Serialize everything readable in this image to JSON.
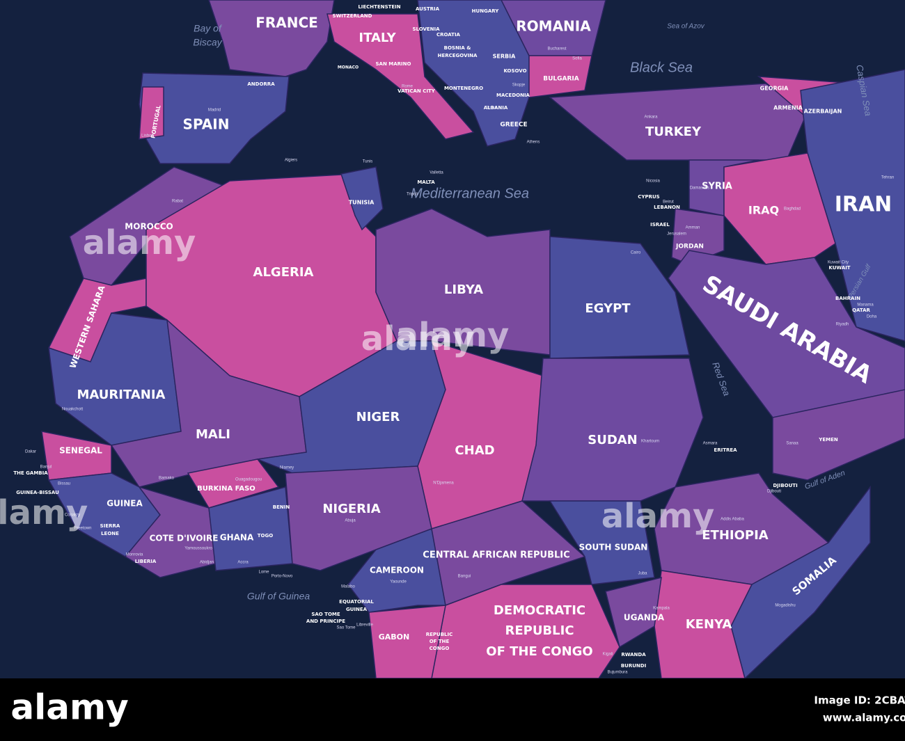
{
  "map": {
    "seas": [
      "Bay of",
      "Biscay",
      "Black Sea",
      "Mediterranean Sea",
      "Red Sea",
      "Gulf of Guinea",
      "Gulf of Aden",
      "Caspian Sea",
      "Persian Gulf",
      "Sea of Azov"
    ],
    "countries": [
      "FRANCE",
      "ITALY",
      "ROMANIA",
      "SPAIN",
      "PORTUGAL",
      "ANDORRA",
      "SWITZERLAND",
      "LIECHTENSTEIN",
      "AUSTRIA",
      "HUNGARY",
      "SLOVENIA",
      "CROATIA",
      "BOSNIA &",
      "HERCEGOVINA",
      "SERBIA",
      "KOSOVO",
      "MONTENEGRO",
      "MACEDONIA",
      "ALBANIA",
      "BULGARIA",
      "GREECE",
      "SAN MARINO",
      "VATICAN CITY",
      "MONACO",
      "MALTA",
      "TURKEY",
      "GEORGIA",
      "ARMENIA",
      "AZERBAIJAN",
      "SYRIA",
      "CYPRUS",
      "LEBANON",
      "ISRAEL",
      "JORDAN",
      "IRAQ",
      "IRAN",
      "KUWAIT",
      "BAHRAIN",
      "QATAR",
      "SAUDI ARABIA",
      "YEMEN",
      "MOROCCO",
      "ALGERIA",
      "TUNISIA",
      "LIBYA",
      "EGYPT",
      "WESTERN SAHARA",
      "MAURITANIA",
      "MALI",
      "NIGER",
      "CHAD",
      "SUDAN",
      "SENEGAL",
      "THE GAMBIA",
      "GUINEA-BISSAU",
      "GUINEA",
      "SIERRA",
      "LEONE",
      "LIBERIA",
      "COTE D'IVOIRE",
      "BURKINA FASO",
      "GHANA",
      "TOGO",
      "BENIN",
      "NIGERIA",
      "CAMEROON",
      "CENTRAL AFRICAN REPUBLIC",
      "SOUTH SUDAN",
      "ETHIOPIA",
      "ERITREA",
      "DJIBOUTI",
      "SOMALIA",
      "KENYA",
      "UGANDA",
      "RWANDA",
      "BURUNDI",
      "DEMOCRATIC",
      "REPUBLIC",
      "OF THE CONGO",
      "GABON",
      "REPUBLIC",
      "OF THE",
      "CONGO",
      "EQUATORIAL",
      "GUINEA",
      "SAO TOME",
      "AND PRINCIPE"
    ],
    "cities": [
      "Madrid",
      "Lisbon",
      "Rome",
      "Algiers",
      "Tunis",
      "Tripoli",
      "Valletta",
      "Rabat",
      "Cairo",
      "Khartoum",
      "Ankara",
      "Athens",
      "Sofia",
      "Bucharest",
      "Nicosia",
      "Beirut",
      "Damascus",
      "Amman",
      "Jerusalem",
      "Baghdad",
      "Tehran",
      "Riyadh",
      "Kuwait City",
      "Manama",
      "Doha",
      "Sanaa",
      "Asmara",
      "Djibouti",
      "Addis Ababa",
      "Mogadishu",
      "Juba",
      "Kampala",
      "Kigali",
      "Bujumbura",
      "Bangui",
      "Yaounde",
      "Malabo",
      "Libreville",
      "Sao Tome",
      "N'Djamena",
      "Abuja",
      "Niamey",
      "Ouagadougou",
      "Bamako",
      "Nouakchott",
      "Dakar",
      "Banjul",
      "Bissau",
      "Conakry",
      "Freetown",
      "Monrovia",
      "Yamoussoukro",
      "Abidjan",
      "Accra",
      "Lome",
      "Porto-Novo",
      "Tirana",
      "Skopje"
    ]
  },
  "watermark": "alamy",
  "footer": {
    "logo": "alamy",
    "image_id": "Image ID: 2CBAT09",
    "url": "www.alamy.com"
  }
}
